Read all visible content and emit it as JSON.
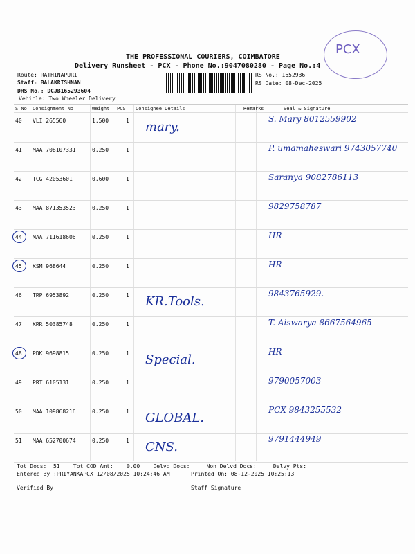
{
  "header": {
    "company": "THE PROFESSIONAL COURIERS, COIMBATORE",
    "subtitle": "Delivery Runsheet - PCX - Phone No.:9047080280 - Page No.:4",
    "stamp": "PCX",
    "route": "Route: RATHINAPURI",
    "staff": "Staff: BALAKRISHNAN",
    "drs": "DRS No.: DCJB165293604",
    "vehicle": "Vehicle: Two Wheeler Delivery",
    "rs_no": "RS No.: 1652936",
    "rs_date": "RS Date: 08-Dec-2025"
  },
  "columns": [
    "S No",
    "Consignment No",
    "Weight",
    "PCS",
    "Consignee Details",
    "Remarks",
    "Seal & Signature"
  ],
  "rows": [
    {
      "sno": "40",
      "cn": "VLI 265560",
      "wt": "1.500",
      "pcs": "1",
      "consignee": "mary.",
      "seal": "S. Mary 8012559902",
      "circled": false
    },
    {
      "sno": "41",
      "cn": "MAA 708107331",
      "wt": "0.250",
      "pcs": "1",
      "consignee": "",
      "seal": "P. umamaheswari 9743057740",
      "circled": false
    },
    {
      "sno": "42",
      "cn": "TCG 42053601",
      "wt": "0.600",
      "pcs": "1",
      "consignee": "",
      "seal": "Saranya 9082786113",
      "circled": false
    },
    {
      "sno": "43",
      "cn": "MAA 871353523",
      "wt": "0.250",
      "pcs": "1",
      "consignee": "",
      "seal": "9829758787",
      "circled": false
    },
    {
      "sno": "44",
      "cn": "MAA 711618606",
      "wt": "0.250",
      "pcs": "1",
      "consignee": "",
      "seal": "HR",
      "circled": true
    },
    {
      "sno": "45",
      "cn": "KSM 968644",
      "wt": "0.250",
      "pcs": "1",
      "consignee": "",
      "seal": "HR",
      "circled": true
    },
    {
      "sno": "46",
      "cn": "TRP 6953892",
      "wt": "0.250",
      "pcs": "1",
      "consignee": "KR.Tools.",
      "seal": "9843765929.",
      "circled": false
    },
    {
      "sno": "47",
      "cn": "KRR 50385748",
      "wt": "0.250",
      "pcs": "1",
      "consignee": "",
      "seal": "T. Aiswarya 8667564965",
      "circled": false
    },
    {
      "sno": "48",
      "cn": "PDK 9698815",
      "wt": "0.250",
      "pcs": "1",
      "consignee": "Special.",
      "seal": "HR",
      "circled": true
    },
    {
      "sno": "49",
      "cn": "PRT 6105131",
      "wt": "0.250",
      "pcs": "1",
      "consignee": "",
      "seal": "9790057003",
      "circled": false
    },
    {
      "sno": "50",
      "cn": "MAA 109868216",
      "wt": "0.250",
      "pcs": "1",
      "consignee": "GLOBAL.",
      "seal": "PCX 9843255532",
      "circled": false
    },
    {
      "sno": "51",
      "cn": "MAA 652700674",
      "wt": "0.250",
      "pcs": "1",
      "consignee": "CNS.",
      "seal": "9791444949",
      "circled": false
    }
  ],
  "footer": {
    "totals": "Tot Docs:  51    Tot COD Amt:    0.00    Delvd Docs:     Non Delvd Docs:     Delvy Pts:",
    "entered": "Entered By :PRIYANKAPCX 12/08/2025 10:24:46 AM",
    "printed": "Printed On: 08-12-2025 10:25:13",
    "verified": "Verified By",
    "staff_sig": "Staff Signature"
  }
}
